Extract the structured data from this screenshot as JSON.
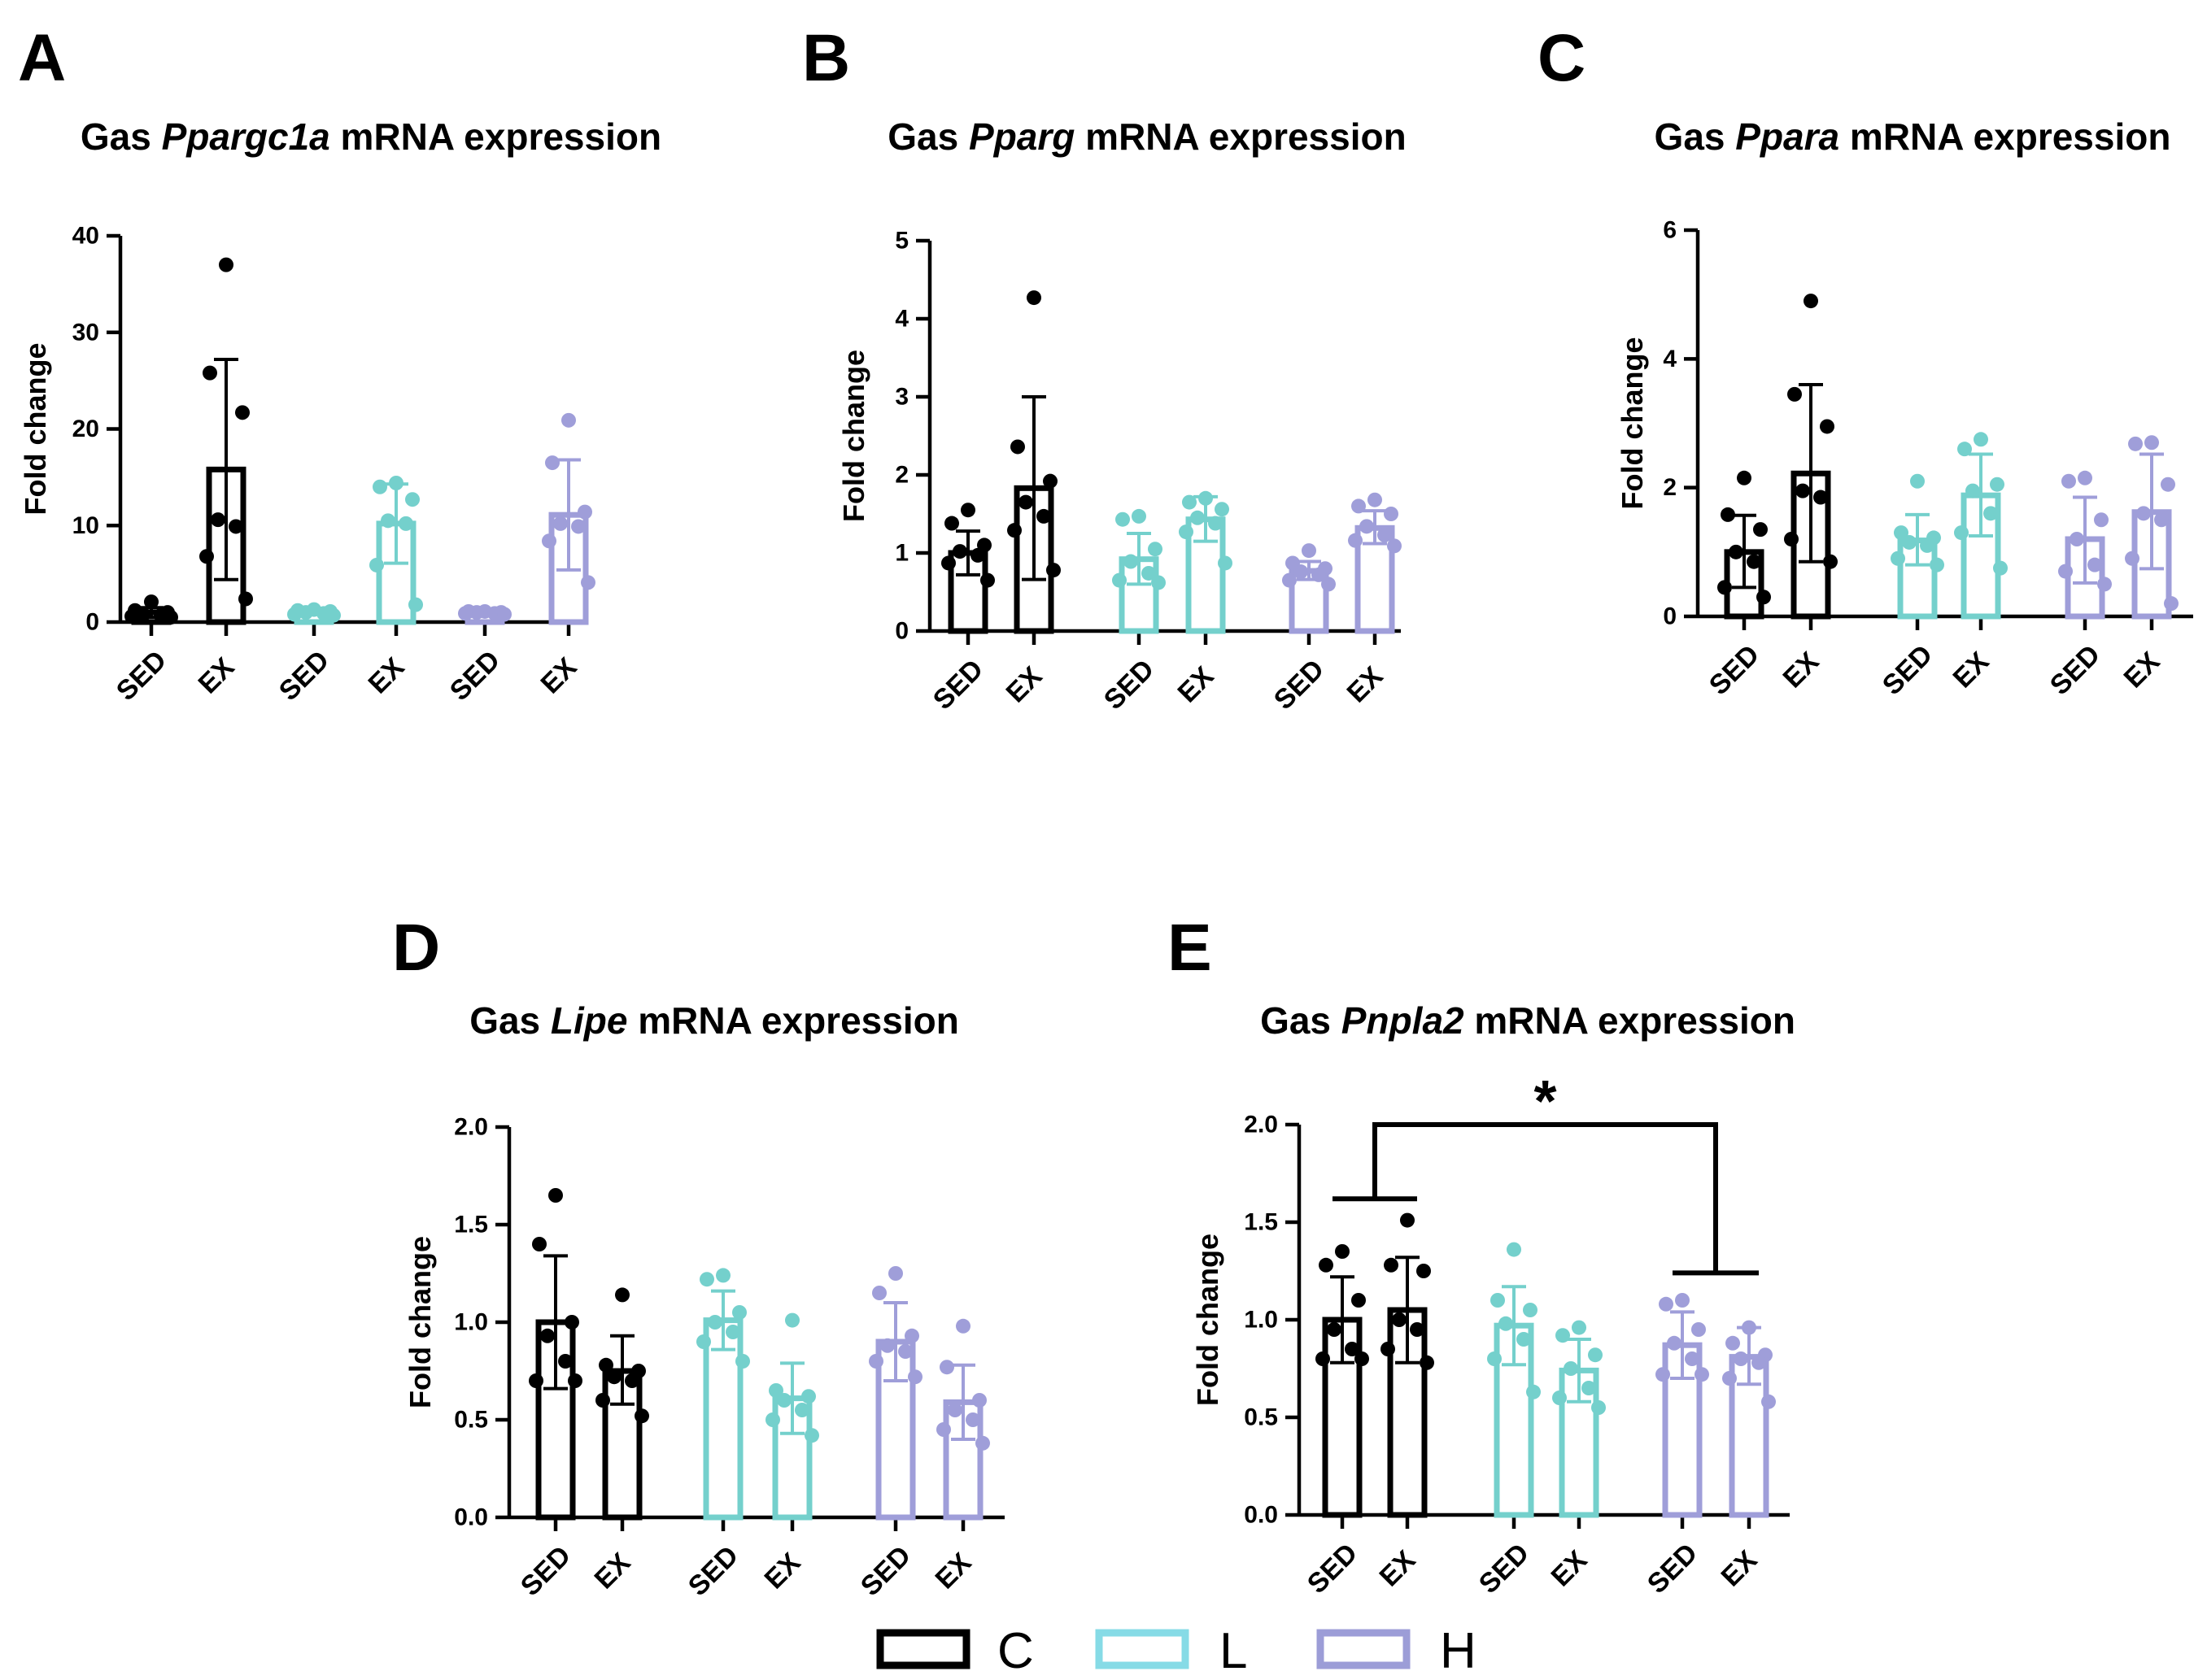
{
  "chart_data": [
    {
      "panel": "A",
      "type": "bar",
      "title": {
        "prefix": "Gas",
        "gene": "Ppargc1a",
        "suffix": "mRNA expression"
      },
      "ylabel": "Fold change",
      "ylim": [
        0,
        40
      ],
      "yticks": [
        "0",
        "10",
        "20",
        "30",
        "40"
      ],
      "categories": [
        "SED",
        "EX"
      ],
      "series": [
        {
          "name": "C",
          "color": "#000000",
          "values": [
            1.0,
            15.8
          ],
          "error": [
            [
              0.5,
              1.5
            ],
            [
              4.4,
              27.2
            ]
          ],
          "points": [
            [
              2.1,
              1.2,
              1.0,
              0.8,
              0.7,
              0.6,
              0.5
            ],
            [
              37.0,
              25.8,
              21.7,
              10.6,
              9.9,
              6.8,
              2.4
            ]
          ]
        },
        {
          "name": "L",
          "color": "#74d0cc",
          "values": [
            1.0,
            10.2
          ],
          "error": [
            [
              0.8,
              1.2
            ],
            [
              6.1,
              14.3
            ]
          ],
          "points": [
            [
              1.3,
              1.2,
              1.1,
              1.0,
              0.9,
              0.8,
              0.7
            ],
            [
              14.4,
              14.0,
              12.7,
              10.5,
              10.2,
              5.9,
              1.8
            ]
          ]
        },
        {
          "name": "H",
          "color": "#9f9ed9",
          "values": [
            1.0,
            11.1
          ],
          "error": [
            [
              0.85,
              1.15
            ],
            [
              5.4,
              16.8
            ]
          ],
          "points": [
            [
              1.1,
              1.1,
              1.0,
              1.0,
              0.9,
              0.9,
              0.8
            ],
            [
              20.9,
              16.5,
              11.4,
              10.2,
              9.9,
              8.4,
              4.1
            ]
          ]
        }
      ]
    },
    {
      "panel": "B",
      "type": "bar",
      "title": {
        "prefix": "Gas",
        "gene": "Pparg",
        "suffix": "mRNA expression"
      },
      "ylabel": "Fold change",
      "ylim": [
        0,
        5
      ],
      "yticks": [
        "0",
        "1",
        "2",
        "3",
        "4",
        "5"
      ],
      "categories": [
        "SED",
        "EX"
      ],
      "series": [
        {
          "name": "C",
          "color": "#000000",
          "values": [
            1.0,
            1.83
          ],
          "error": [
            [
              0.72,
              1.28
            ],
            [
              0.66,
              3.0
            ]
          ],
          "points": [
            [
              1.55,
              1.38,
              1.1,
              1.02,
              0.97,
              0.87,
              0.65
            ],
            [
              4.27,
              2.36,
              1.92,
              1.65,
              1.47,
              1.29,
              0.78
            ]
          ]
        },
        {
          "name": "L",
          "color": "#74d0cc",
          "values": [
            0.92,
            1.43
          ],
          "error": [
            [
              0.6,
              1.25
            ],
            [
              1.15,
              1.72
            ]
          ],
          "points": [
            [
              1.47,
              1.43,
              1.05,
              0.89,
              0.74,
              0.65,
              0.62
            ],
            [
              1.7,
              1.65,
              1.56,
              1.45,
              1.38,
              1.27,
              0.87
            ]
          ]
        },
        {
          "name": "H",
          "color": "#9f9ed9",
          "values": [
            0.77,
            1.32
          ],
          "error": [
            [
              0.66,
              0.89
            ],
            [
              1.12,
              1.54
            ]
          ],
          "points": [
            [
              1.03,
              0.87,
              0.8,
              0.76,
              0.72,
              0.65,
              0.6
            ],
            [
              1.68,
              1.6,
              1.5,
              1.34,
              1.23,
              1.16,
              1.09
            ]
          ]
        }
      ]
    },
    {
      "panel": "C",
      "type": "bar",
      "title": {
        "prefix": "Gas",
        "gene": "Ppara",
        "suffix": "mRNA expression"
      },
      "ylabel": "Fold change",
      "ylim": [
        0,
        6
      ],
      "yticks": [
        "0",
        "2",
        "4",
        "6"
      ],
      "categories": [
        "SED",
        "EX"
      ],
      "series": [
        {
          "name": "C",
          "color": "#000000",
          "values": [
            1.0,
            2.22
          ],
          "error": [
            [
              0.45,
              1.57
            ],
            [
              0.85,
              3.6
            ]
          ],
          "points": [
            [
              2.15,
              1.58,
              1.35,
              1.0,
              0.85,
              0.45,
              0.3
            ],
            [
              4.9,
              3.45,
              2.95,
              1.95,
              1.85,
              1.2,
              0.85
            ]
          ]
        },
        {
          "name": "L",
          "color": "#74d0cc",
          "values": [
            1.18,
            1.88
          ],
          "error": [
            [
              0.8,
              1.58
            ],
            [
              1.25,
              2.52
            ]
          ],
          "points": [
            [
              2.1,
              1.3,
              1.22,
              1.15,
              1.1,
              0.9,
              0.8
            ],
            [
              2.75,
              2.6,
              2.05,
              1.95,
              1.6,
              1.3,
              0.75
            ]
          ]
        },
        {
          "name": "H",
          "color": "#9f9ed9",
          "values": [
            1.2,
            1.62
          ],
          "error": [
            [
              0.52,
              1.85
            ],
            [
              0.74,
              2.52
            ]
          ],
          "points": [
            [
              2.15,
              2.1,
              1.5,
              1.2,
              0.8,
              0.7,
              0.5
            ],
            [
              2.7,
              2.68,
              2.05,
              1.6,
              1.5,
              0.9,
              0.2
            ]
          ]
        }
      ]
    },
    {
      "panel": "D",
      "type": "bar",
      "title": {
        "prefix": "Gas",
        "gene": "Lipe",
        "suffix": "mRNA expression"
      },
      "ylabel": "Fold change",
      "ylim": [
        0,
        2
      ],
      "yticks": [
        "0.0",
        "0.5",
        "1.0",
        "1.5",
        "2.0"
      ],
      "categories": [
        "SED",
        "EX"
      ],
      "series": [
        {
          "name": "C",
          "color": "#000000",
          "values": [
            1.0,
            0.75
          ],
          "error": [
            [
              0.66,
              1.34
            ],
            [
              0.58,
              0.93
            ]
          ],
          "points": [
            [
              1.65,
              1.4,
              1.0,
              0.93,
              0.8,
              0.7,
              0.7
            ],
            [
              1.14,
              0.78,
              0.75,
              0.72,
              0.7,
              0.6,
              0.52
            ]
          ]
        },
        {
          "name": "L",
          "color": "#74d0cc",
          "values": [
            1.01,
            0.61
          ],
          "error": [
            [
              0.86,
              1.16
            ],
            [
              0.43,
              0.79
            ]
          ],
          "points": [
            [
              1.24,
              1.22,
              1.05,
              1.0,
              0.95,
              0.9,
              0.8
            ],
            [
              1.01,
              0.65,
              0.62,
              0.6,
              0.55,
              0.5,
              0.42
            ]
          ]
        },
        {
          "name": "H",
          "color": "#9f9ed9",
          "values": [
            0.9,
            0.59
          ],
          "error": [
            [
              0.7,
              1.1
            ],
            [
              0.4,
              0.78
            ]
          ],
          "points": [
            [
              1.25,
              1.15,
              0.93,
              0.88,
              0.85,
              0.8,
              0.72
            ],
            [
              0.98,
              0.77,
              0.6,
              0.55,
              0.5,
              0.45,
              0.38
            ]
          ]
        }
      ]
    },
    {
      "panel": "E",
      "type": "bar",
      "title": {
        "prefix": "Gas",
        "gene": "Pnpla2",
        "suffix": "mRNA expression"
      },
      "ylabel": "Fold change",
      "ylim": [
        0,
        2
      ],
      "yticks": [
        "0.0",
        "0.5",
        "1.0",
        "1.5",
        "2.0"
      ],
      "categories": [
        "SED",
        "EX"
      ],
      "series": [
        {
          "name": "C",
          "color": "#000000",
          "values": [
            1.0,
            1.05
          ],
          "error": [
            [
              0.78,
              1.22
            ],
            [
              0.78,
              1.32
            ]
          ],
          "points": [
            [
              1.35,
              1.28,
              1.1,
              0.95,
              0.85,
              0.8,
              0.8
            ],
            [
              1.51,
              1.28,
              1.25,
              1.0,
              0.95,
              0.85,
              0.78
            ]
          ]
        },
        {
          "name": "L",
          "color": "#74d0cc",
          "values": [
            0.97,
            0.74
          ],
          "error": [
            [
              0.77,
              1.17
            ],
            [
              0.58,
              0.9
            ]
          ],
          "points": [
            [
              1.36,
              1.1,
              1.05,
              0.98,
              0.9,
              0.8,
              0.63
            ],
            [
              0.96,
              0.92,
              0.82,
              0.75,
              0.65,
              0.6,
              0.55
            ]
          ]
        },
        {
          "name": "H",
          "color": "#9f9ed9",
          "values": [
            0.87,
            0.81
          ],
          "error": [
            [
              0.7,
              1.04
            ],
            [
              0.67,
              0.96
            ]
          ],
          "points": [
            [
              1.1,
              1.08,
              0.95,
              0.88,
              0.8,
              0.72,
              0.72
            ],
            [
              0.96,
              0.88,
              0.82,
              0.8,
              0.78,
              0.7,
              0.58
            ]
          ]
        }
      ],
      "significance": {
        "label": "*",
        "between": [
          "C",
          "H"
        ],
        "bracket_y": 2.0,
        "group_line_y": [
          1.62,
          1.24
        ]
      }
    }
  ],
  "legend": {
    "items": [
      {
        "label": "C",
        "color": "#000000"
      },
      {
        "label": "L",
        "color": "#86dbe6"
      },
      {
        "label": "H",
        "color": "#9c9dd7"
      }
    ]
  }
}
